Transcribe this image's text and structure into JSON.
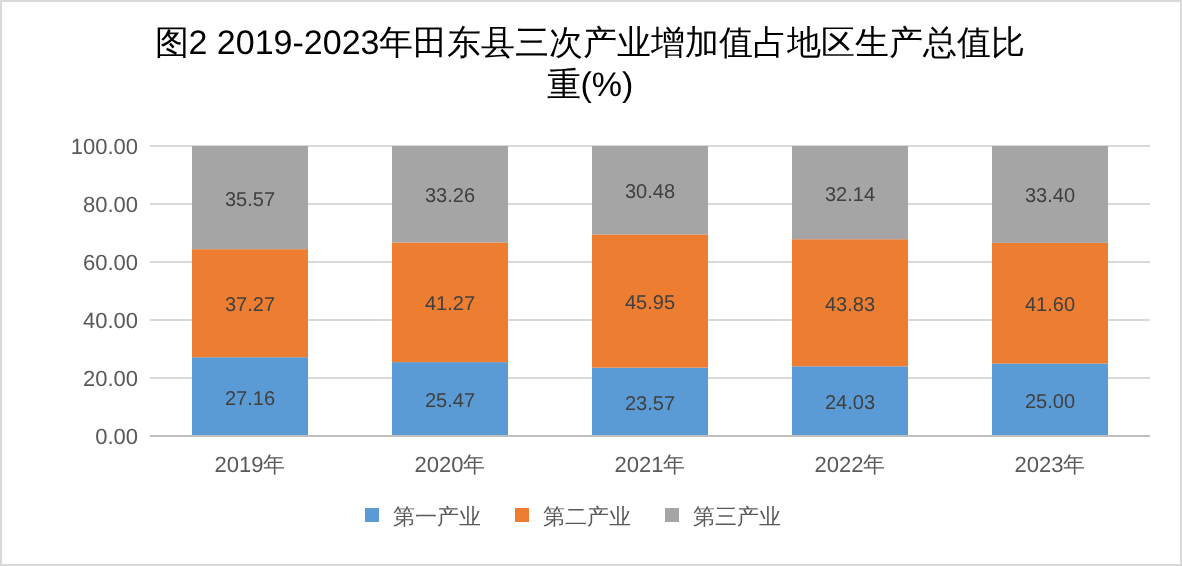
{
  "chart_data": {
    "type": "bar",
    "stacked": true,
    "title": "图2 2019-2023年田东县三次产业增加值占地区生产总值比重(%)",
    "categories": [
      "2019年",
      "2020年",
      "2021年",
      "2022年",
      "2023年"
    ],
    "series": [
      {
        "name": "第一产业",
        "color": "#5b9bd5",
        "values": [
          27.16,
          25.47,
          23.57,
          24.03,
          25.0
        ],
        "value_labels": [
          "27.16",
          "25.47",
          "23.57",
          "24.03",
          "25.00"
        ]
      },
      {
        "name": "第二产业",
        "color": "#ed7d31",
        "values": [
          37.27,
          41.27,
          45.95,
          43.83,
          41.6
        ],
        "value_labels": [
          "37.27",
          "41.27",
          "45.95",
          "43.83",
          "41.60"
        ]
      },
      {
        "name": "第三产业",
        "color": "#a5a5a5",
        "values": [
          35.57,
          33.26,
          30.48,
          32.14,
          33.4
        ],
        "value_labels": [
          "35.57",
          "33.26",
          "30.48",
          "32.14",
          "33.40"
        ]
      }
    ],
    "ylim": [
      0,
      100
    ],
    "yticks": [
      {
        "value": 0,
        "label": "0.00"
      },
      {
        "value": 20,
        "label": "20.00"
      },
      {
        "value": 40,
        "label": "40.00"
      },
      {
        "value": 60,
        "label": "60.00"
      },
      {
        "value": 80,
        "label": "80.00"
      },
      {
        "value": 100,
        "label": "100.00"
      }
    ],
    "grid": "y",
    "legend": "bottom"
  }
}
